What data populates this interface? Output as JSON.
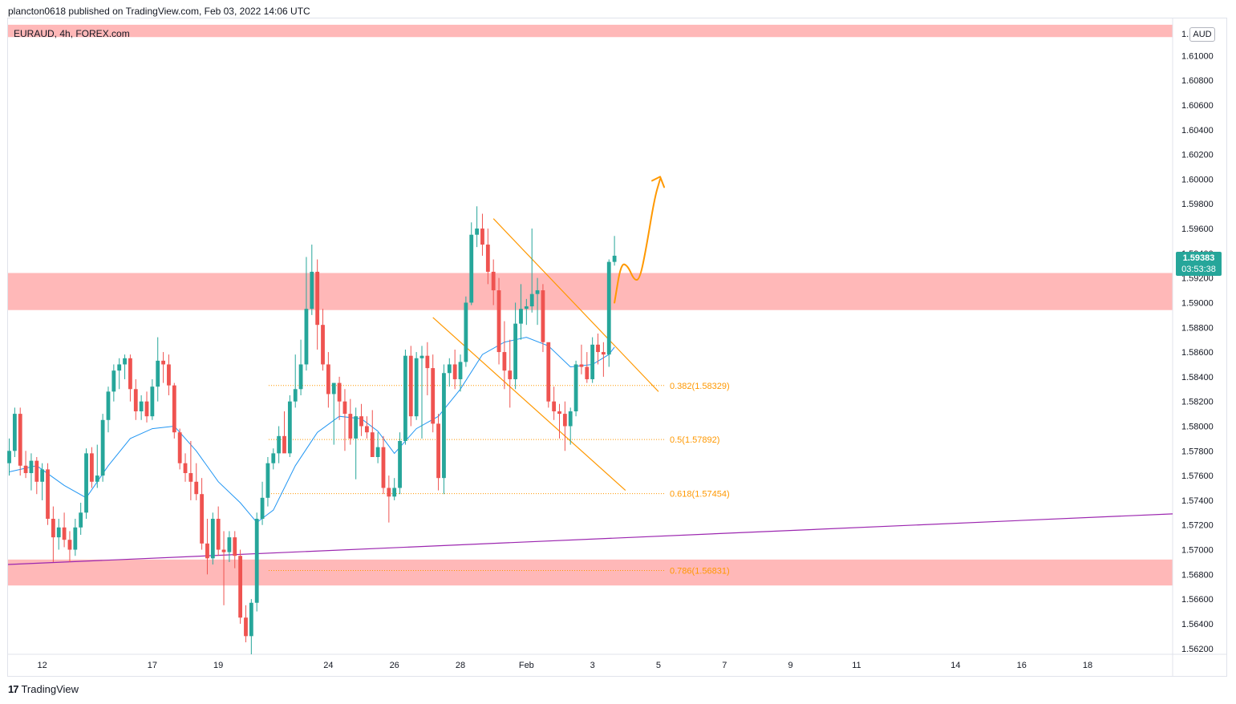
{
  "header": {
    "publisher": "plancton0618 published on TradingView.com, Feb 03, 2022 14:06 UTC"
  },
  "symbol": {
    "label": "EURAUD, 4h, FOREX.com"
  },
  "currency_button": "AUD",
  "price_badge": {
    "price": "1.59383",
    "countdown": "03:53:38",
    "color": "#26a69a"
  },
  "footer": {
    "logo_glyph": "17",
    "brand": "TradingView"
  },
  "colors": {
    "up": "#26a69a",
    "down": "#ef5350",
    "zone": "#ffb8b8",
    "ma": "#2196f3",
    "channel": "#ff9800",
    "trendline": "#9c27b0",
    "fib": "#ff9800"
  },
  "chart_data": {
    "type": "candlestick",
    "title": "EURAUD, 4h, FOREX.com",
    "y_axis": {
      "ticks": [
        1.562,
        1.564,
        1.566,
        1.568,
        1.57,
        1.572,
        1.574,
        1.576,
        1.578,
        1.58,
        1.582,
        1.584,
        1.586,
        1.588,
        1.59,
        1.592,
        1.594,
        1.596,
        1.598,
        1.6,
        1.602,
        1.604,
        1.606,
        1.608,
        1.61
      ],
      "tick_labels": [
        "1.56200",
        "1.56400",
        "1.56600",
        "1.56800",
        "1.57000",
        "1.57200",
        "1.57400",
        "1.57600",
        "1.57800",
        "1.58000",
        "1.58200",
        "1.58400",
        "1.58600",
        "1.58800",
        "1.59000",
        "1.59200",
        "1.59400",
        "1.59600",
        "1.59800",
        "1.60000",
        "1.60200",
        "1.60400",
        "1.60600",
        "1.60800",
        "1.61000"
      ],
      "top_partial_label": "1.",
      "range": [
        1.5618,
        1.6122
      ]
    },
    "x_axis": {
      "date_labels": [
        "12",
        "17",
        "19",
        "24",
        "26",
        "28",
        "Feb",
        "3",
        "5",
        "7",
        "9",
        "11",
        "14",
        "16",
        "18"
      ],
      "date_label_bars": [
        6,
        26,
        38,
        58,
        70,
        82,
        94,
        106,
        118,
        130,
        142,
        154,
        172,
        184,
        196
      ]
    },
    "last_price": 1.59383,
    "candles": [
      [
        1.577,
        1.579,
        1.576,
        1.578
      ],
      [
        1.578,
        1.5815,
        1.5775,
        1.581
      ],
      [
        1.581,
        1.5815,
        1.576,
        1.5768
      ],
      [
        1.5768,
        1.578,
        1.5758,
        1.5762
      ],
      [
        1.5762,
        1.5778,
        1.5748,
        1.5772
      ],
      [
        1.5772,
        1.5775,
        1.5745,
        1.5755
      ],
      [
        1.5755,
        1.577,
        1.574,
        1.5765
      ],
      [
        1.5765,
        1.577,
        1.572,
        1.5725
      ],
      [
        1.5725,
        1.5735,
        1.569,
        1.571
      ],
      [
        1.571,
        1.5725,
        1.57,
        1.5718
      ],
      [
        1.5718,
        1.573,
        1.5702,
        1.5708
      ],
      [
        1.5708,
        1.5715,
        1.569,
        1.57
      ],
      [
        1.57,
        1.5725,
        1.5695,
        1.5718
      ],
      [
        1.5718,
        1.5738,
        1.5712,
        1.573
      ],
      [
        1.573,
        1.5782,
        1.5725,
        1.5778
      ],
      [
        1.5778,
        1.5783,
        1.575,
        1.5755
      ],
      [
        1.5755,
        1.5785,
        1.575,
        1.576
      ],
      [
        1.576,
        1.581,
        1.5755,
        1.5805
      ],
      [
        1.5805,
        1.5832,
        1.5795,
        1.5828
      ],
      [
        1.5828,
        1.585,
        1.582,
        1.5845
      ],
      [
        1.5845,
        1.5855,
        1.583,
        1.585
      ],
      [
        1.585,
        1.5858,
        1.5838,
        1.5855
      ],
      [
        1.5855,
        1.5858,
        1.582,
        1.583
      ],
      [
        1.583,
        1.5838,
        1.5805,
        1.5812
      ],
      [
        1.5812,
        1.5825,
        1.5805,
        1.582
      ],
      [
        1.582,
        1.5828,
        1.5803,
        1.5808
      ],
      [
        1.5808,
        1.5838,
        1.5805,
        1.5832
      ],
      [
        1.5832,
        1.5872,
        1.582,
        1.5853
      ],
      [
        1.5853,
        1.586,
        1.5835,
        1.585
      ],
      [
        1.585,
        1.5858,
        1.5825,
        1.5833
      ],
      [
        1.5833,
        1.5835,
        1.579,
        1.5795
      ],
      [
        1.5795,
        1.5798,
        1.5765,
        1.577
      ],
      [
        1.577,
        1.5778,
        1.5755,
        1.5762
      ],
      [
        1.5762,
        1.5788,
        1.574,
        1.5755
      ],
      [
        1.5755,
        1.577,
        1.574,
        1.5745
      ],
      [
        1.5745,
        1.5758,
        1.57,
        1.5705
      ],
      [
        1.5705,
        1.5725,
        1.568,
        1.5693
      ],
      [
        1.5693,
        1.573,
        1.5688,
        1.5725
      ],
      [
        1.5725,
        1.5735,
        1.5695,
        1.57
      ],
      [
        1.57,
        1.5715,
        1.5655,
        1.5698
      ],
      [
        1.5698,
        1.5715,
        1.569,
        1.571
      ],
      [
        1.571,
        1.5715,
        1.5685,
        1.5695
      ],
      [
        1.5695,
        1.57,
        1.564,
        1.5645
      ],
      [
        1.5645,
        1.5655,
        1.5625,
        1.563
      ],
      [
        1.563,
        1.566,
        1.561,
        1.5657
      ],
      [
        1.5657,
        1.573,
        1.565,
        1.5725
      ],
      [
        1.5725,
        1.5755,
        1.572,
        1.5742
      ],
      [
        1.5742,
        1.5775,
        1.5735,
        1.577
      ],
      [
        1.577,
        1.5782,
        1.5765,
        1.5778
      ],
      [
        1.5778,
        1.58,
        1.577,
        1.5792
      ],
      [
        1.5792,
        1.5812,
        1.578,
        1.5778
      ],
      [
        1.5778,
        1.5825,
        1.5775,
        1.582
      ],
      [
        1.582,
        1.5858,
        1.5815,
        1.583
      ],
      [
        1.583,
        1.587,
        1.5825,
        1.585
      ],
      [
        1.585,
        1.5937,
        1.5845,
        1.5895
      ],
      [
        1.5895,
        1.5947,
        1.589,
        1.5925
      ],
      [
        1.5925,
        1.5935,
        1.5862,
        1.5882
      ],
      [
        1.5882,
        1.5895,
        1.5845,
        1.585
      ],
      [
        1.585,
        1.586,
        1.5815,
        1.5826
      ],
      [
        1.5826,
        1.5835,
        1.5785,
        1.5835
      ],
      [
        1.5835,
        1.584,
        1.5805,
        1.582
      ],
      [
        1.582,
        1.583,
        1.578,
        1.581
      ],
      [
        1.581,
        1.5822,
        1.5785,
        1.579
      ],
      [
        1.579,
        1.5815,
        1.5757,
        1.5808
      ],
      [
        1.5808,
        1.5818,
        1.5792,
        1.58
      ],
      [
        1.58,
        1.5808,
        1.579,
        1.5795
      ],
      [
        1.5795,
        1.5813,
        1.578,
        1.5775
      ],
      [
        1.5775,
        1.5795,
        1.577,
        1.5783
      ],
      [
        1.5783,
        1.5792,
        1.5745,
        1.575
      ],
      [
        1.575,
        1.576,
        1.5722,
        1.5743
      ],
      [
        1.5743,
        1.5758,
        1.574,
        1.575
      ],
      [
        1.575,
        1.5795,
        1.5745,
        1.5788
      ],
      [
        1.5788,
        1.5862,
        1.5785,
        1.5857
      ],
      [
        1.5857,
        1.5865,
        1.58,
        1.5808
      ],
      [
        1.5808,
        1.586,
        1.5805,
        1.5855
      ],
      [
        1.5855,
        1.5865,
        1.579,
        1.5857
      ],
      [
        1.5857,
        1.5868,
        1.5825,
        1.5847
      ],
      [
        1.5847,
        1.5858,
        1.5795,
        1.5802
      ],
      [
        1.5802,
        1.581,
        1.5748,
        1.5758
      ],
      [
        1.5758,
        1.585,
        1.5745,
        1.5843
      ],
      [
        1.5843,
        1.5855,
        1.5832,
        1.585
      ],
      [
        1.585,
        1.5862,
        1.583,
        1.5838
      ],
      [
        1.5838,
        1.5858,
        1.5828,
        1.5852
      ],
      [
        1.5852,
        1.5905,
        1.5848,
        1.59
      ],
      [
        1.59,
        1.5965,
        1.5898,
        1.5955
      ],
      [
        1.5955,
        1.5978,
        1.5945,
        1.596
      ],
      [
        1.596,
        1.5972,
        1.5938,
        1.5947
      ],
      [
        1.5947,
        1.596,
        1.5915,
        1.5925
      ],
      [
        1.5925,
        1.5935,
        1.5898,
        1.591
      ],
      [
        1.591,
        1.592,
        1.585,
        1.586
      ],
      [
        1.586,
        1.5885,
        1.583,
        1.5845
      ],
      [
        1.5845,
        1.587,
        1.5815,
        1.5838
      ],
      [
        1.5838,
        1.59,
        1.583,
        1.5883
      ],
      [
        1.5883,
        1.5915,
        1.587,
        1.5895
      ],
      [
        1.5895,
        1.5903,
        1.5882,
        1.5897
      ],
      [
        1.5897,
        1.596,
        1.5892,
        1.5907
      ],
      [
        1.5907,
        1.592,
        1.5882,
        1.591
      ],
      [
        1.591,
        1.5915,
        1.586,
        1.5868
      ],
      [
        1.5868,
        1.5865,
        1.5815,
        1.582
      ],
      [
        1.582,
        1.5832,
        1.5805,
        1.5812
      ],
      [
        1.5812,
        1.5818,
        1.579,
        1.581
      ],
      [
        1.581,
        1.582,
        1.578,
        1.58
      ],
      [
        1.58,
        1.5815,
        1.5785,
        1.5812
      ],
      [
        1.5812,
        1.5853,
        1.5808,
        1.585
      ],
      [
        1.585,
        1.5866,
        1.5842,
        1.5848
      ],
      [
        1.5848,
        1.586,
        1.5835,
        1.5838
      ],
      [
        1.5838,
        1.5872,
        1.5835,
        1.5866
      ],
      [
        1.5866,
        1.5875,
        1.585,
        1.586
      ],
      [
        1.586,
        1.5868,
        1.584,
        1.5858
      ],
      [
        1.5858,
        1.5935,
        1.5848,
        1.5933
      ],
      [
        1.5933,
        1.5954,
        1.593,
        1.5938
      ]
    ],
    "ma_line": [
      [
        0,
        1.5763
      ],
      [
        5,
        1.5768
      ],
      [
        10,
        1.5752
      ],
      [
        14,
        1.5742
      ],
      [
        18,
        1.5768
      ],
      [
        22,
        1.579
      ],
      [
        26,
        1.5798
      ],
      [
        30,
        1.58
      ],
      [
        34,
        1.578
      ],
      [
        38,
        1.5755
      ],
      [
        42,
        1.5738
      ],
      [
        45,
        1.5722
      ],
      [
        48,
        1.5732
      ],
      [
        52,
        1.5768
      ],
      [
        56,
        1.5795
      ],
      [
        60,
        1.5808
      ],
      [
        64,
        1.5806
      ],
      [
        67,
        1.5796
      ],
      [
        70,
        1.5778
      ],
      [
        74,
        1.5798
      ],
      [
        78,
        1.5808
      ],
      [
        82,
        1.583
      ],
      [
        86,
        1.5858
      ],
      [
        90,
        1.5868
      ],
      [
        94,
        1.5872
      ],
      [
        98,
        1.5865
      ],
      [
        102,
        1.5848
      ],
      [
        106,
        1.585
      ],
      [
        109,
        1.5858
      ],
      [
        110,
        1.5864
      ]
    ],
    "zones": [
      {
        "from": 1.6115,
        "to": 1.6125
      },
      {
        "from": 1.5894,
        "to": 1.5924
      },
      {
        "from": 1.5671,
        "to": 1.5692
      }
    ],
    "fib_levels": [
      {
        "label": "0.382(1.58329)",
        "value": 1.58329
      },
      {
        "label": "0.5(1.57892)",
        "value": 1.57892
      },
      {
        "label": "0.618(1.57454)",
        "value": 1.57454
      },
      {
        "label": "0.786(1.56831)",
        "value": 1.56831
      }
    ],
    "channel_lines": [
      {
        "x1": 88,
        "y1": 1.5968,
        "x2": 118,
        "y2": 1.5828
      },
      {
        "x1": 77,
        "y1": 1.5888,
        "x2": 112,
        "y2": 1.5748
      }
    ],
    "trendline": {
      "x1": 0,
      "y1": 1.5688,
      "x2": 212,
      "y2": 1.5729
    },
    "projection_path": [
      [
        110,
        1.59
      ],
      [
        111.2,
        1.5932
      ],
      [
        112.4,
        1.593
      ],
      [
        113.6,
        1.5918
      ],
      [
        114.6,
        1.5919
      ],
      [
        115.8,
        1.5945
      ],
      [
        117.3,
        1.5985
      ],
      [
        118.3,
        1.6
      ]
    ]
  }
}
